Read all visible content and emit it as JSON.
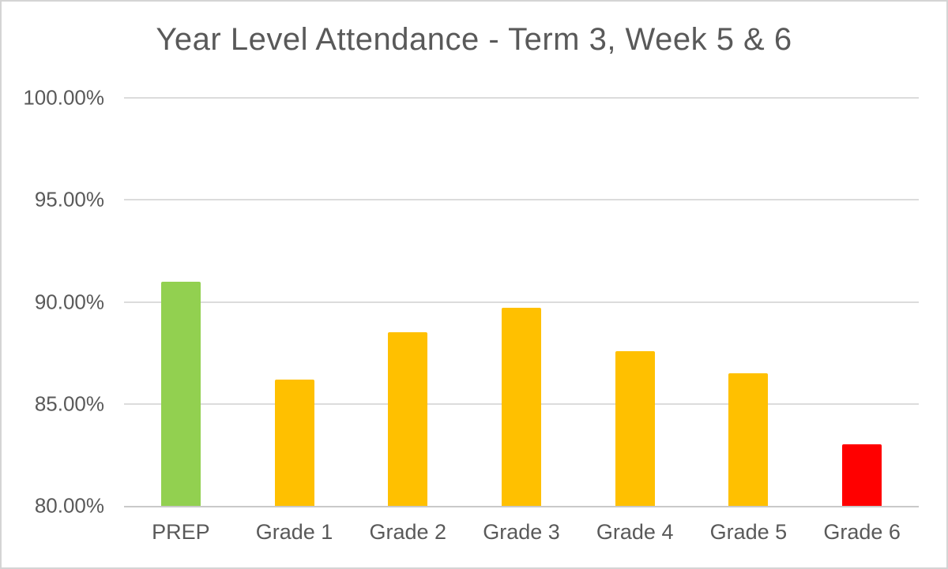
{
  "chart_data": {
    "type": "bar",
    "title": "Year Level Attendance - Term 3, Week 5 & 6",
    "categories": [
      "PREP",
      "Grade 1",
      "Grade 2",
      "Grade 3",
      "Grade 4",
      "Grade 5",
      "Grade 6"
    ],
    "values": [
      91.0,
      86.2,
      88.5,
      89.7,
      87.6,
      86.5,
      83.0
    ],
    "bar_colors": [
      "#92D050",
      "#FFC000",
      "#FFC000",
      "#FFC000",
      "#FFC000",
      "#FFC000",
      "#FF0000"
    ],
    "xlabel": "",
    "ylabel": "",
    "ylim": [
      80,
      100
    ],
    "yticks": [
      80,
      85,
      90,
      95,
      100
    ],
    "ytick_labels": [
      "80.00%",
      "85.00%",
      "90.00%",
      "95.00%",
      "100.00%"
    ],
    "grid": true,
    "legend": false,
    "colors": {
      "grid": "#dcdcdc",
      "axis_line": "#c9c9c9",
      "text": "#595959",
      "background": "#ffffff",
      "border": "#d4d4d4"
    }
  }
}
